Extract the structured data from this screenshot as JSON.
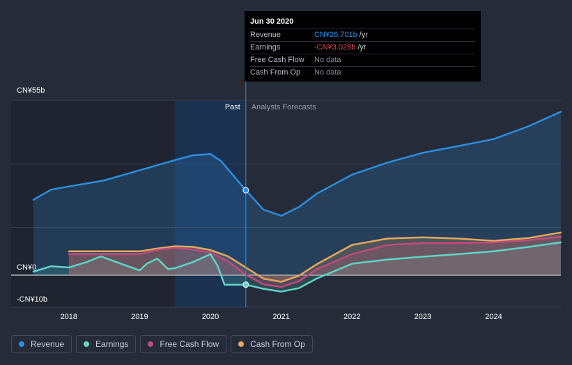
{
  "chart_data": {
    "type": "line",
    "x_start": 2017.5,
    "x_end": 2024.95,
    "ylim": [
      -10,
      55
    ],
    "y_labels": [
      "CN¥55b",
      "CN¥0",
      "-CN¥10b"
    ],
    "x_ticks": [
      {
        "value": 2018,
        "label": "2018"
      },
      {
        "value": 2019,
        "label": "2019"
      },
      {
        "value": 2020,
        "label": "2020"
      },
      {
        "value": 2021,
        "label": "2021"
      },
      {
        "value": 2022,
        "label": "2022"
      },
      {
        "value": 2023,
        "label": "2023"
      },
      {
        "value": 2024,
        "label": "2024"
      }
    ],
    "past_label": "Past",
    "forecast_label": "Analysts Forecasts",
    "divider_x": 2020.5,
    "series": [
      {
        "name": "Revenue",
        "color": "#2d8ee0",
        "points": [
          [
            2017.5,
            23.7
          ],
          [
            2017.75,
            26.9
          ],
          [
            2018.0,
            27.9
          ],
          [
            2018.5,
            29.8
          ],
          [
            2019.0,
            33.0
          ],
          [
            2019.5,
            36.2
          ],
          [
            2019.75,
            37.7
          ],
          [
            2020.0,
            38.1
          ],
          [
            2020.15,
            35.9
          ],
          [
            2020.5,
            26.7
          ],
          [
            2020.75,
            20.6
          ],
          [
            2021.0,
            18.7
          ],
          [
            2021.25,
            21.4
          ],
          [
            2021.5,
            25.6
          ],
          [
            2022.0,
            31.6
          ],
          [
            2022.5,
            35.4
          ],
          [
            2023.0,
            38.5
          ],
          [
            2023.5,
            40.6
          ],
          [
            2024.0,
            42.8
          ],
          [
            2024.5,
            46.9
          ],
          [
            2024.95,
            51.4
          ]
        ]
      },
      {
        "name": "Earnings",
        "color": "#5fd6c9",
        "points": [
          [
            2017.5,
            1.1
          ],
          [
            2017.75,
            2.8
          ],
          [
            2018.0,
            2.4
          ],
          [
            2018.25,
            4.1
          ],
          [
            2018.45,
            5.9
          ],
          [
            2018.65,
            4.3
          ],
          [
            2019.0,
            1.5
          ],
          [
            2019.1,
            3.6
          ],
          [
            2019.25,
            5.2
          ],
          [
            2019.4,
            1.9
          ],
          [
            2019.5,
            2.2
          ],
          [
            2019.75,
            4.1
          ],
          [
            2020.0,
            6.6
          ],
          [
            2020.1,
            3.0
          ],
          [
            2020.2,
            -3.0
          ],
          [
            2020.5,
            -3.0
          ],
          [
            2020.75,
            -4.3
          ],
          [
            2021.0,
            -5.2
          ],
          [
            2021.25,
            -4.1
          ],
          [
            2021.5,
            -1.1
          ],
          [
            2022.0,
            3.6
          ],
          [
            2022.5,
            4.9
          ],
          [
            2023.0,
            5.8
          ],
          [
            2023.5,
            6.6
          ],
          [
            2024.0,
            7.5
          ],
          [
            2024.5,
            8.9
          ],
          [
            2024.95,
            10.3
          ]
        ]
      },
      {
        "name": "Free Cash Flow",
        "color": "#c4497e",
        "points": [
          [
            2018.0,
            6.6
          ],
          [
            2019.0,
            6.6
          ],
          [
            2019.25,
            8.0
          ],
          [
            2019.5,
            8.6
          ],
          [
            2019.75,
            8.1
          ],
          [
            2020.0,
            7.1
          ],
          [
            2020.25,
            4.3
          ],
          [
            2020.5,
            0.2
          ],
          [
            2020.75,
            -2.9
          ],
          [
            2021.0,
            -3.7
          ],
          [
            2021.25,
            -1.9
          ],
          [
            2021.5,
            1.8
          ],
          [
            2022.0,
            6.6
          ],
          [
            2022.5,
            9.5
          ],
          [
            2023.0,
            10.1
          ],
          [
            2023.5,
            10.1
          ],
          [
            2024.0,
            10.3
          ],
          [
            2024.5,
            11.0
          ],
          [
            2024.95,
            12.1
          ]
        ]
      },
      {
        "name": "Cash From Op",
        "color": "#e8a85c",
        "points": [
          [
            2018.0,
            7.5
          ],
          [
            2019.0,
            7.5
          ],
          [
            2019.25,
            8.4
          ],
          [
            2019.5,
            9.1
          ],
          [
            2019.75,
            8.9
          ],
          [
            2020.0,
            7.9
          ],
          [
            2020.25,
            5.9
          ],
          [
            2020.5,
            2.4
          ],
          [
            2020.75,
            -1.1
          ],
          [
            2021.0,
            -2.1
          ],
          [
            2021.25,
            -0.2
          ],
          [
            2021.5,
            3.4
          ],
          [
            2022.0,
            9.5
          ],
          [
            2022.5,
            11.5
          ],
          [
            2023.0,
            11.9
          ],
          [
            2023.5,
            11.5
          ],
          [
            2024.0,
            10.8
          ],
          [
            2024.5,
            11.7
          ],
          [
            2024.95,
            13.4
          ]
        ]
      }
    ],
    "highlight_points": [
      {
        "series": "Revenue",
        "x": 2020.5,
        "y": 26.7
      },
      {
        "series": "Earnings",
        "x": 2020.5,
        "y": -3.0
      }
    ]
  },
  "tooltip": {
    "date": "Jun 30 2020",
    "rows": [
      {
        "label": "Revenue",
        "value": "CN¥26.701b",
        "unit": "/yr",
        "color": "#2d8ee0"
      },
      {
        "label": "Earnings",
        "value": "-CN¥3.028b",
        "unit": "/yr",
        "color": "#e84a4a"
      },
      {
        "label": "Free Cash Flow",
        "value": "No data",
        "unit": "",
        "color": "#8a8f99"
      },
      {
        "label": "Cash From Op",
        "value": "No data",
        "unit": "",
        "color": "#8a8f99"
      }
    ]
  },
  "legend": [
    {
      "label": "Revenue",
      "color": "#2d8ee0"
    },
    {
      "label": "Earnings",
      "color": "#5fd6c9"
    },
    {
      "label": "Free Cash Flow",
      "color": "#c4497e"
    },
    {
      "label": "Cash From Op",
      "color": "#e8a85c"
    }
  ]
}
